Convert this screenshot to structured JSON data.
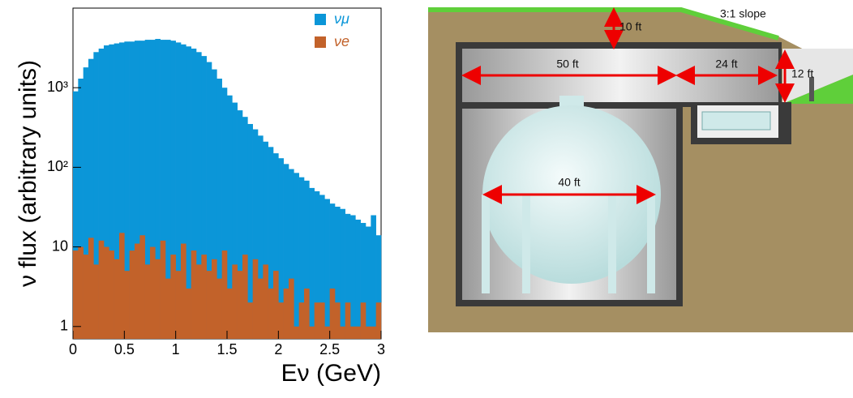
{
  "chart_data": {
    "type": "histogram",
    "xlabel": "Eν (GeV)",
    "ylabel": "ν flux (arbitrary units)",
    "log_y": true,
    "grid": false,
    "legend": "upper right",
    "xlim": [
      0,
      3
    ],
    "xticks": [
      0,
      0.5,
      1,
      1.5,
      2,
      2.5,
      3
    ],
    "ylim": [
      0.7,
      10000
    ],
    "yticks": [
      1,
      10,
      {
        "value": 100,
        "label": "10²"
      },
      {
        "value": 1000,
        "label": "10³"
      }
    ],
    "bins": [
      0,
      0.05,
      0.1,
      0.15,
      0.2,
      0.25,
      0.3,
      0.35,
      0.4,
      0.45,
      0.5,
      0.55,
      0.6,
      0.65,
      0.7,
      0.75,
      0.8,
      0.85,
      0.9,
      0.95,
      1,
      1.05,
      1.1,
      1.15,
      1.2,
      1.25,
      1.3,
      1.35,
      1.4,
      1.45,
      1.5,
      1.55,
      1.6,
      1.65,
      1.7,
      1.75,
      1.8,
      1.85,
      1.9,
      1.95,
      2,
      2.05,
      2.1,
      2.15,
      2.2,
      2.25,
      2.3,
      2.35,
      2.4,
      2.45,
      2.5,
      2.55,
      2.6,
      2.65,
      2.7,
      2.75,
      2.8,
      2.85,
      2.9,
      2.95,
      3
    ],
    "series": [
      {
        "name": "νμ",
        "color": "#0b96d8",
        "values": [
          900,
          1300,
          1800,
          2300,
          2800,
          3100,
          3400,
          3500,
          3600,
          3700,
          3800,
          3800,
          3900,
          3900,
          4000,
          4000,
          4100,
          4000,
          4000,
          3900,
          3700,
          3500,
          3300,
          3100,
          2800,
          2500,
          2100,
          1700,
          1300,
          1000,
          800,
          650,
          520,
          430,
          350,
          300,
          250,
          210,
          180,
          150,
          130,
          110,
          95,
          85,
          75,
          68,
          55,
          50,
          45,
          40,
          35,
          32,
          30,
          26,
          25,
          22,
          20,
          18,
          25,
          14
        ]
      },
      {
        "name": "νe",
        "color": "#c2622a",
        "values": [
          9,
          10,
          8,
          13,
          6,
          12,
          10,
          9,
          7,
          15,
          5,
          9,
          11,
          14,
          6,
          10,
          7,
          12,
          4,
          8,
          5,
          11,
          3,
          9,
          6,
          8,
          5,
          7,
          4,
          9,
          3,
          6,
          5,
          8,
          2,
          7,
          4,
          6,
          3,
          5,
          2,
          3,
          4,
          1,
          2,
          3,
          1,
          2,
          2,
          1,
          3,
          2,
          1,
          2,
          1,
          1,
          2,
          1,
          1,
          2
        ]
      }
    ]
  },
  "diagram": {
    "labels": {
      "cover": "10 ft",
      "slope": "3:1 slope",
      "hall_length": "50 ft",
      "annex_length": "24 ft",
      "annex_height": "12 ft",
      "tank_diameter": "40 ft"
    }
  }
}
